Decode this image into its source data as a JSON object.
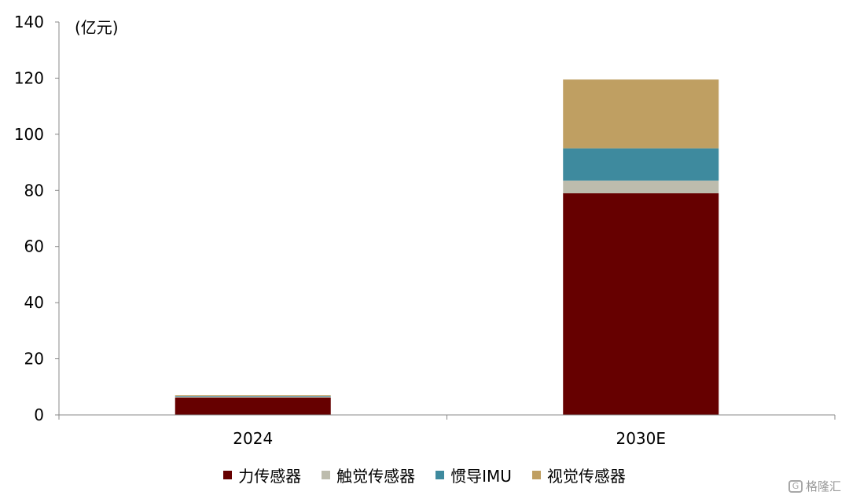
{
  "chart_data": {
    "type": "bar",
    "stacked": true,
    "title": "",
    "unit_label": "(亿元)",
    "categories": [
      "2024",
      "2030E"
    ],
    "ylim": [
      0,
      140
    ],
    "yticks": [
      0,
      20,
      40,
      60,
      80,
      100,
      120,
      140
    ],
    "grid": false,
    "legend_position": "bottom",
    "series": [
      {
        "name": "力传感器",
        "color": "#660000",
        "values": [
          6.2,
          79
        ]
      },
      {
        "name": "触觉传感器",
        "color": "#bdbcad",
        "values": [
          0.3,
          4.5
        ]
      },
      {
        "name": "惯导IMU",
        "color": "#3e8a9e",
        "values": [
          0.2,
          11.5
        ]
      },
      {
        "name": "视觉传感器",
        "color": "#bf9f62",
        "values": [
          0.3,
          24.5
        ]
      }
    ]
  },
  "watermark": {
    "icon": "G",
    "text": "格隆汇"
  }
}
